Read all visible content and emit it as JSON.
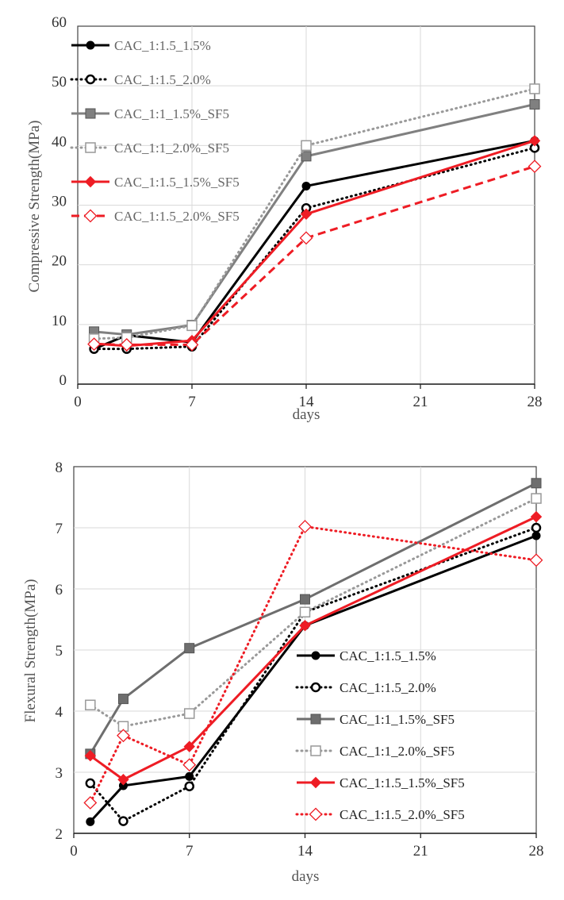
{
  "chart_data": [
    {
      "type": "line",
      "title": "",
      "xlabel": "days",
      "ylabel": "Compressive Strength(MPa)",
      "xlim": [
        0,
        28
      ],
      "ylim": [
        0,
        60
      ],
      "xticks": [
        0,
        7,
        14,
        21,
        28
      ],
      "yticks": [
        0,
        10,
        20,
        30,
        40,
        50,
        60
      ],
      "grid": true,
      "legend": "top-left",
      "x": [
        1,
        3,
        7,
        14,
        28
      ],
      "series": [
        {
          "name": "CAC_1:1.5_1.5%",
          "color": "#000000",
          "dash": "solid",
          "marker": "circle-filled",
          "values": [
            5.9,
            8.2,
            7.0,
            33.2,
            40.8
          ]
        },
        {
          "name": "CAC_1:1.5_2.0%",
          "color": "#000000",
          "dash": "dotted",
          "marker": "circle-open",
          "values": [
            5.9,
            5.9,
            6.3,
            29.5,
            39.6
          ]
        },
        {
          "name": "CAC_1:1_1.5%_SF5",
          "color": "#808080",
          "dash": "solid",
          "marker": "square-filled",
          "values": [
            8.8,
            8.3,
            9.9,
            38.2,
            46.9
          ]
        },
        {
          "name": "CAC_1:1_2.0%_SF5",
          "color": "#999999",
          "dash": "dotted",
          "marker": "square-open",
          "values": [
            7.6,
            7.8,
            9.8,
            40.0,
            49.5
          ]
        },
        {
          "name": "CAC_1:1.5_1.5%_SF5",
          "color": "#ee1c24",
          "dash": "solid",
          "marker": "diamond-filled",
          "values": [
            6.8,
            6.4,
            7.3,
            28.5,
            40.8
          ]
        },
        {
          "name": "CAC_1:1.5_2.0%_SF5",
          "color": "#ee1c24",
          "dash": "dashed",
          "marker": "diamond-open",
          "values": [
            6.7,
            6.6,
            6.6,
            24.5,
            36.5
          ]
        }
      ]
    },
    {
      "type": "line",
      "title": "",
      "xlabel": "days",
      "ylabel": "Flexural Strength(MPa)",
      "xlim": [
        0,
        28
      ],
      "ylim": [
        2,
        8
      ],
      "xticks": [
        0,
        7,
        14,
        21,
        28
      ],
      "yticks": [
        2,
        3,
        4,
        5,
        6,
        7,
        8
      ],
      "grid": true,
      "legend": "bottom-right",
      "x": [
        1,
        3,
        7,
        14,
        28
      ],
      "series": [
        {
          "name": "CAC_1:1.5_1.5%",
          "color": "#000000",
          "dash": "solid",
          "marker": "circle-filled",
          "values": [
            2.19,
            2.78,
            2.93,
            5.4,
            6.87
          ]
        },
        {
          "name": "CAC_1:1.5_2.0%",
          "color": "#000000",
          "dash": "dotted",
          "marker": "circle-open",
          "values": [
            2.82,
            2.2,
            2.77,
            5.62,
            7.0
          ]
        },
        {
          "name": "CAC_1:1_1.5%_SF5",
          "color": "#6e6e6e",
          "dash": "solid",
          "marker": "square-filled",
          "values": [
            3.3,
            4.2,
            5.03,
            5.83,
            7.73
          ]
        },
        {
          "name": "CAC_1:1_2.0%_SF5",
          "color": "#999999",
          "dash": "dotted",
          "marker": "square-open",
          "values": [
            4.1,
            3.75,
            3.96,
            5.62,
            7.48
          ]
        },
        {
          "name": "CAC_1:1.5_1.5%_SF5",
          "color": "#ee1c24",
          "dash": "solid",
          "marker": "diamond-filled",
          "values": [
            3.27,
            2.88,
            3.42,
            5.4,
            7.18
          ]
        },
        {
          "name": "CAC_1:1.5_2.0%_SF5",
          "color": "#ee1c24",
          "dash": "dotted",
          "marker": "diamond-open",
          "values": [
            2.5,
            3.6,
            3.12,
            7.02,
            6.47
          ]
        }
      ]
    }
  ]
}
